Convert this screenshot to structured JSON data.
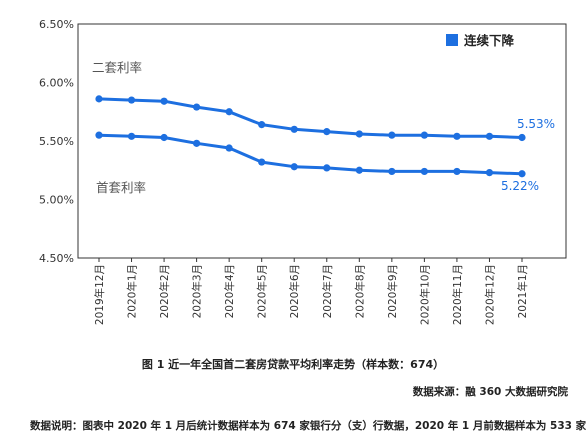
{
  "chart_data": {
    "type": "line",
    "categories": [
      "2019年12月",
      "2020年1月",
      "2020年2月",
      "2020年3月",
      "2020年4月",
      "2020年5月",
      "2020年6月",
      "2020年7月",
      "2020年8月",
      "2020年9月",
      "2020年10月",
      "2020年11月",
      "2020年12月",
      "2021年1月"
    ],
    "series": [
      {
        "name": "二套利率",
        "values": [
          5.86,
          5.85,
          5.84,
          5.79,
          5.75,
          5.64,
          5.6,
          5.58,
          5.56,
          5.55,
          5.55,
          5.54,
          5.54,
          5.53
        ],
        "end_label": "5.53%"
      },
      {
        "name": "首套利率",
        "values": [
          5.55,
          5.54,
          5.53,
          5.48,
          5.44,
          5.32,
          5.28,
          5.27,
          5.25,
          5.24,
          5.24,
          5.24,
          5.23,
          5.22
        ],
        "end_label": "5.22%"
      }
    ],
    "ylim": [
      4.5,
      6.5
    ],
    "yticks": [
      "4.50%",
      "5.00%",
      "5.50%",
      "6.00%",
      "6.50%"
    ],
    "ytick_values": [
      4.5,
      5.0,
      5.5,
      6.0,
      6.5
    ],
    "legend": {
      "label": "连续下降",
      "position": "top-right"
    },
    "color": "#1d6fe0",
    "grid": false
  },
  "caption": "图 1  近一年全国首二套房贷款平均利率走势（样本数：674）",
  "source": "数据来源：融 360 大数据研究院",
  "note": "数据说明：图表中 2020 年 1 月后统计数据样本为 674 家银行分（支）行数据，2020 年 1 月前数据样本为 533 家。"
}
